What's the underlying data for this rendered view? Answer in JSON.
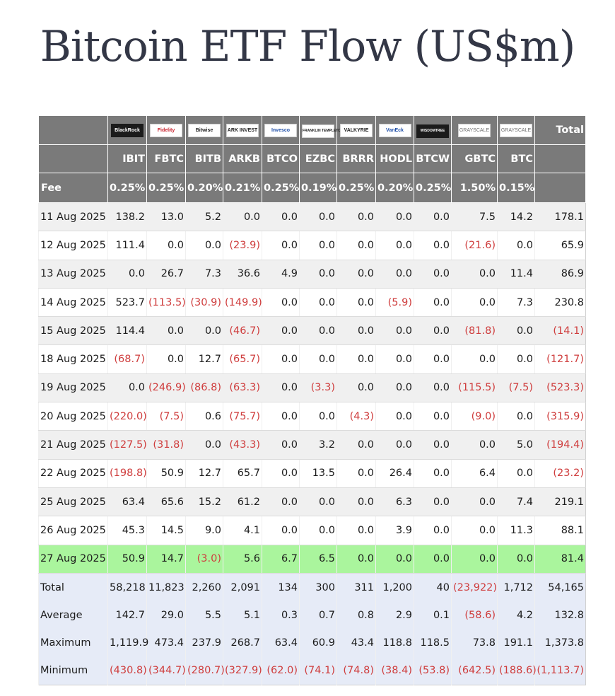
{
  "title": "Bitcoin ETF Flow (US$m)",
  "total_header": "Total",
  "fee_label": "Fee",
  "logos": [
    {
      "name": "blackrock-logo",
      "text": "BlackRock",
      "style": "blk"
    },
    {
      "name": "fidelity-logo",
      "text": "Fidelity",
      "style": "red"
    },
    {
      "name": "bitwise-logo",
      "text": "Bitwise",
      "style": ""
    },
    {
      "name": "ark-invest-logo",
      "text": "ARK INVEST",
      "style": ""
    },
    {
      "name": "invesco-logo",
      "text": "Invesco",
      "style": "blue"
    },
    {
      "name": "franklin-templeton-logo",
      "text": "FRANKLIN TEMPLETON",
      "style": "sm"
    },
    {
      "name": "valkyrie-logo",
      "text": "VALKYRIE",
      "style": ""
    },
    {
      "name": "vaneck-logo",
      "text": "VanEck",
      "style": "blue"
    },
    {
      "name": "wisdomtree-logo",
      "text": "WISDOMTREE",
      "style": "blk sm"
    },
    {
      "name": "grayscale-logo",
      "text": "GRAYSCALE",
      "style": "gray"
    },
    {
      "name": "grayscale-mini-logo",
      "text": "GRAYSCALE",
      "style": "gray"
    }
  ],
  "tickers": [
    "IBIT",
    "FBTC",
    "BITB",
    "ARKB",
    "BTCO",
    "EZBC",
    "BRRR",
    "HODL",
    "BTCW",
    "GBTC",
    "BTC"
  ],
  "fees": [
    "0.25%",
    "0.25%",
    "0.20%",
    "0.21%",
    "0.25%",
    "0.19%",
    "0.25%",
    "0.20%",
    "0.25%",
    "1.50%",
    "0.15%"
  ],
  "colors": {
    "header_bg": "#7a7a7a",
    "highlight_row": "#aaf59d",
    "summary_bg": "#e6ebf7",
    "negative": "#cf3d3d"
  },
  "rows": [
    {
      "date": "11 Aug 2025",
      "values": [
        "138.2",
        "13.0",
        "5.2",
        "0.0",
        "0.0",
        "0.0",
        "0.0",
        "0.0",
        "0.0",
        "7.5",
        "14.2"
      ],
      "total": "178.1"
    },
    {
      "date": "12 Aug 2025",
      "values": [
        "111.4",
        "0.0",
        "0.0",
        "(23.9)",
        "0.0",
        "0.0",
        "0.0",
        "0.0",
        "0.0",
        "(21.6)",
        "0.0"
      ],
      "total": "65.9"
    },
    {
      "date": "13 Aug 2025",
      "values": [
        "0.0",
        "26.7",
        "7.3",
        "36.6",
        "4.9",
        "0.0",
        "0.0",
        "0.0",
        "0.0",
        "0.0",
        "11.4"
      ],
      "total": "86.9"
    },
    {
      "date": "14 Aug 2025",
      "values": [
        "523.7",
        "(113.5)",
        "(30.9)",
        "(149.9)",
        "0.0",
        "0.0",
        "0.0",
        "(5.9)",
        "0.0",
        "0.0",
        "7.3"
      ],
      "total": "230.8"
    },
    {
      "date": "15 Aug 2025",
      "values": [
        "114.4",
        "0.0",
        "0.0",
        "(46.7)",
        "0.0",
        "0.0",
        "0.0",
        "0.0",
        "0.0",
        "(81.8)",
        "0.0"
      ],
      "total": "(14.1)"
    },
    {
      "date": "18 Aug 2025",
      "values": [
        "(68.7)",
        "0.0",
        "12.7",
        "(65.7)",
        "0.0",
        "0.0",
        "0.0",
        "0.0",
        "0.0",
        "0.0",
        "0.0"
      ],
      "total": "(121.7)"
    },
    {
      "date": "19 Aug 2025",
      "values": [
        "0.0",
        "(246.9)",
        "(86.8)",
        "(63.3)",
        "0.0",
        "(3.3)",
        "0.0",
        "0.0",
        "0.0",
        "(115.5)",
        "(7.5)"
      ],
      "total": "(523.3)"
    },
    {
      "date": "20 Aug 2025",
      "values": [
        "(220.0)",
        "(7.5)",
        "0.6",
        "(75.7)",
        "0.0",
        "0.0",
        "(4.3)",
        "0.0",
        "0.0",
        "(9.0)",
        "0.0"
      ],
      "total": "(315.9)"
    },
    {
      "date": "21 Aug 2025",
      "values": [
        "(127.5)",
        "(31.8)",
        "0.0",
        "(43.3)",
        "0.0",
        "3.2",
        "0.0",
        "0.0",
        "0.0",
        "0.0",
        "5.0"
      ],
      "total": "(194.4)"
    },
    {
      "date": "22 Aug 2025",
      "values": [
        "(198.8)",
        "50.9",
        "12.7",
        "65.7",
        "0.0",
        "13.5",
        "0.0",
        "26.4",
        "0.0",
        "6.4",
        "0.0"
      ],
      "total": "(23.2)"
    },
    {
      "date": "25 Aug 2025",
      "values": [
        "63.4",
        "65.6",
        "15.2",
        "61.2",
        "0.0",
        "0.0",
        "0.0",
        "6.3",
        "0.0",
        "0.0",
        "7.4"
      ],
      "total": "219.1"
    },
    {
      "date": "26 Aug 2025",
      "values": [
        "45.3",
        "14.5",
        "9.0",
        "4.1",
        "0.0",
        "0.0",
        "0.0",
        "3.9",
        "0.0",
        "0.0",
        "11.3"
      ],
      "total": "88.1"
    },
    {
      "date": "27 Aug 2025",
      "values": [
        "50.9",
        "14.7",
        "(3.0)",
        "5.6",
        "6.7",
        "6.5",
        "0.0",
        "0.0",
        "0.0",
        "0.0",
        "0.0"
      ],
      "total": "81.4",
      "highlight": true
    }
  ],
  "summary": [
    {
      "label": "Total",
      "values": [
        "58,218",
        "11,823",
        "2,260",
        "2,091",
        "134",
        "300",
        "311",
        "1,200",
        "40",
        "(23,922)",
        "1,712"
      ],
      "total": "54,165"
    },
    {
      "label": "Average",
      "values": [
        "142.7",
        "29.0",
        "5.5",
        "5.1",
        "0.3",
        "0.7",
        "0.8",
        "2.9",
        "0.1",
        "(58.6)",
        "4.2"
      ],
      "total": "132.8"
    },
    {
      "label": "Maximum",
      "values": [
        "1,119.9",
        "473.4",
        "237.9",
        "268.7",
        "63.4",
        "60.9",
        "43.4",
        "118.8",
        "118.5",
        "73.8",
        "191.1"
      ],
      "total": "1,373.8"
    },
    {
      "label": "Minimum",
      "values": [
        "(430.8)",
        "(344.7)",
        "(280.7)",
        "(327.9)",
        "(62.0)",
        "(74.1)",
        "(74.8)",
        "(38.4)",
        "(53.8)",
        "(642.5)",
        "(188.6)"
      ],
      "total": "(1,113.7)"
    }
  ]
}
